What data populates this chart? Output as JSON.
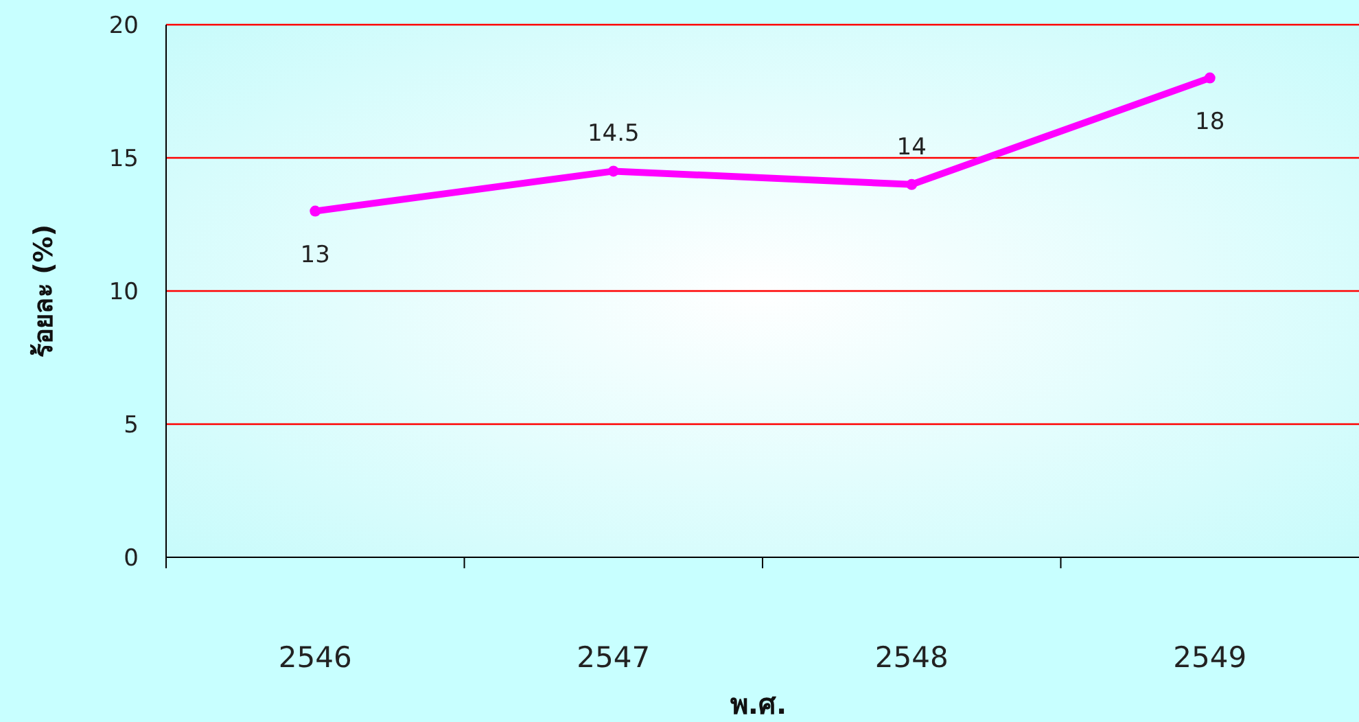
{
  "chart_data": {
    "type": "line",
    "xlabel": "พ.ศ.",
    "ylabel": "ร้อยละ (%)",
    "categories": [
      "2546",
      "2547",
      "2548",
      "2549"
    ],
    "series": [
      {
        "color": "#ff00ff",
        "values": [
          13,
          14.5,
          14,
          18
        ]
      }
    ],
    "ylim": [
      0,
      20
    ],
    "yticks": [
      0,
      5,
      10,
      15,
      20
    ],
    "grid": "y",
    "marker": "circle",
    "data_labels": true
  }
}
